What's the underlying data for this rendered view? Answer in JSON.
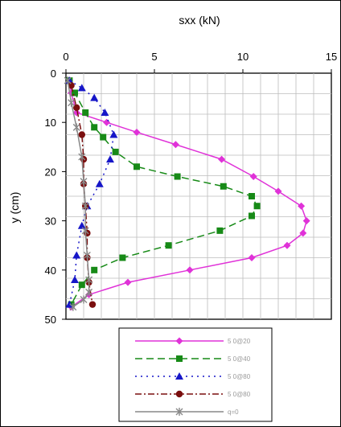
{
  "chart_data": {
    "type": "line",
    "title": "",
    "xlabel": "sxx (kN)",
    "ylabel": "y (cm)",
    "xlim": [
      0,
      15
    ],
    "ylim": [
      0,
      50
    ],
    "x_axis_position": "top",
    "y_inverted": true,
    "grid": true,
    "x_ticks": [
      "0",
      "5",
      "10",
      "15"
    ],
    "y_ticks": [
      "0",
      "10",
      "20",
      "30",
      "40",
      "50"
    ],
    "legend_position": "bottom",
    "series": [
      {
        "name": "5 0@20",
        "color": "#e032d8",
        "dash": "",
        "marker": "diamond",
        "x": [
          0.2,
          0.3,
          0.6,
          2.3,
          4.0,
          6.2,
          8.8,
          10.6,
          12.0,
          13.3,
          13.6,
          13.4,
          12.5,
          10.5,
          7.0,
          3.5,
          1.3,
          0.3
        ],
        "y": [
          1.5,
          4,
          8,
          10,
          12,
          14.5,
          17.5,
          21,
          24,
          27,
          30,
          32.5,
          35,
          37.5,
          40,
          42.5,
          45,
          47.5
        ]
      },
      {
        "name": "5 0@40",
        "color": "#178a17",
        "dash": "9,5",
        "marker": "square",
        "x": [
          0.2,
          0.5,
          1.1,
          1.6,
          2.1,
          2.8,
          4.0,
          6.3,
          8.9,
          10.5,
          10.8,
          10.5,
          8.7,
          5.8,
          3.2,
          1.6,
          0.9,
          0.3
        ],
        "y": [
          1.5,
          4,
          8,
          11,
          13,
          16,
          19,
          21,
          23,
          25,
          27,
          29,
          32,
          35,
          37.5,
          40,
          43,
          47
        ]
      },
      {
        "name": "5 0@80",
        "color": "#1616c8",
        "dash": "2,5",
        "marker": "triangle",
        "x": [
          0.2,
          0.9,
          1.6,
          2.2,
          2.7,
          2.5,
          1.9,
          1.2,
          0.9,
          0.6,
          0.5,
          0.2
        ],
        "y": [
          1.5,
          3,
          5,
          8,
          12.5,
          17.5,
          22.5,
          27,
          31,
          37,
          42,
          47
        ]
      },
      {
        "name": "5 0@80",
        "color": "#7a0e0e",
        "dash": "8,3,2,3",
        "marker": "circle",
        "x": [
          0.3,
          0.6,
          0.9,
          1.0,
          1.0,
          1.1,
          1.2,
          1.2,
          1.3,
          1.5
        ],
        "y": [
          2.5,
          7,
          12.5,
          17.5,
          22.5,
          27,
          32.5,
          37.5,
          42.5,
          47
        ]
      },
      {
        "name": "q=0",
        "color": "#888888",
        "dash": "",
        "marker": "x",
        "x": [
          0.1,
          0.3,
          0.6,
          0.9,
          1.0,
          1.1,
          1.1,
          1.2,
          1.3,
          1.3,
          1.0,
          0.4
        ],
        "y": [
          1.5,
          6,
          11,
          17,
          22,
          27,
          32,
          37,
          42,
          44.5,
          46,
          47.5
        ]
      }
    ]
  }
}
